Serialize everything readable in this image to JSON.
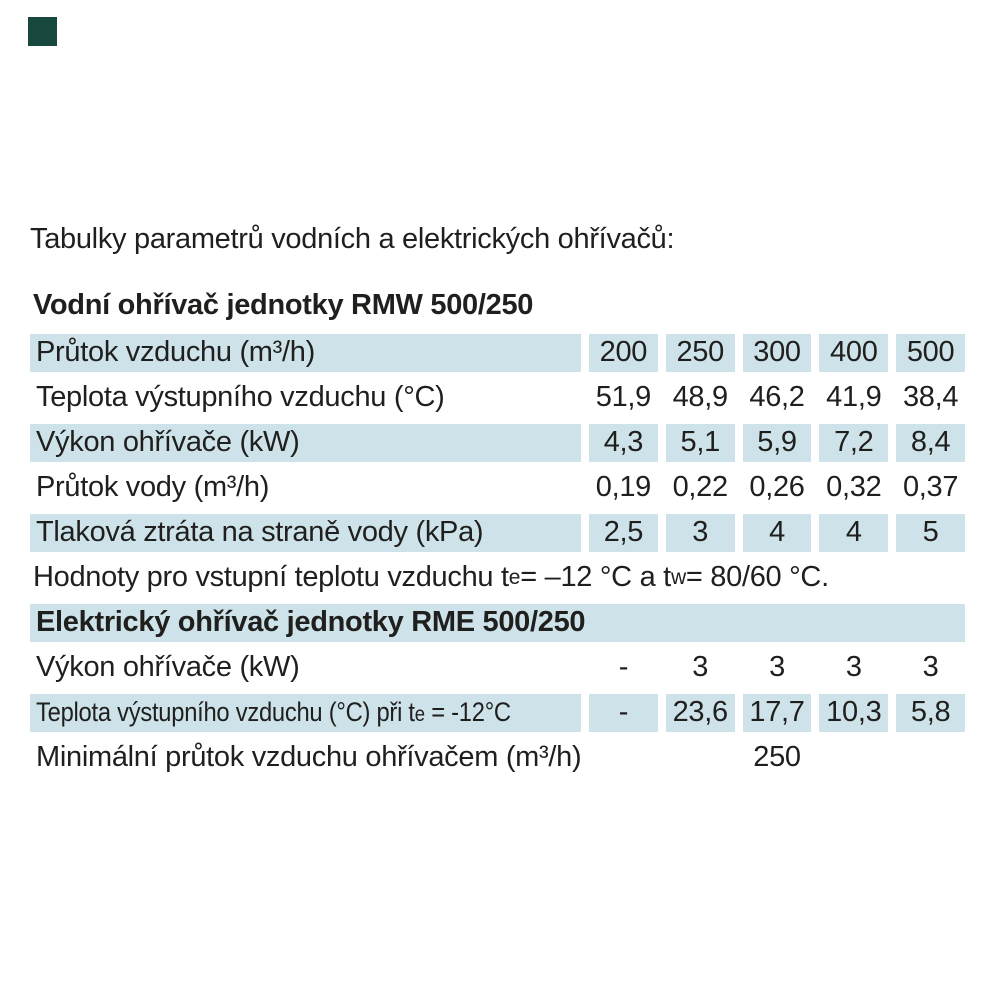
{
  "intro": "Tabulky parametrů vodních a elektrických ohřívačů:",
  "colors": {
    "row_shade": "#cee2e9",
    "corner_marker": "#16483e",
    "text": "#1f1f1e"
  },
  "water_table": {
    "title": "Vodní ohřívač jednotky RMW 500/250",
    "rows": [
      {
        "label": "Průtok vzduchu (m³/h)",
        "values": [
          "200",
          "250",
          "300",
          "400",
          "500"
        ]
      },
      {
        "label": "Teplota výstupního vzduchu (°C)",
        "values": [
          "51,9",
          "48,9",
          "46,2",
          "41,9",
          "38,4"
        ]
      },
      {
        "label": "Výkon ohřívače (kW)",
        "values": [
          "4,3",
          "5,1",
          "5,9",
          "7,2",
          "8,4"
        ]
      },
      {
        "label": "Průtok vody (m³/h)",
        "values": [
          "0,19",
          "0,22",
          "0,26",
          "0,32",
          "0,37"
        ]
      },
      {
        "label": "Tlaková ztráta na straně vody (kPa)",
        "values": [
          "2,5",
          "3",
          "4",
          "4",
          "5"
        ]
      }
    ]
  },
  "note": {
    "p1": "Hodnoty pro vstupní teplotu vzduchu t",
    "sub1": "e",
    "p2": " = –12 °C a t",
    "sub2": "w",
    "p3": " = 80/60 °C."
  },
  "electric_table": {
    "title": "Elektrický ohřívač jednotky RME 500/250",
    "rows": [
      {
        "label": "Výkon ohřívače (kW)",
        "values": [
          "-",
          "3",
          "3",
          "3",
          "3"
        ]
      },
      {
        "label_parts": {
          "p1": "Teplota výstupního vzduchu (°C) při t",
          "sub1": "e",
          "p2": " = -12°C"
        },
        "values": [
          "-",
          "23,6",
          "17,7",
          "10,3",
          "5,8"
        ]
      },
      {
        "label": "Minimální průtok vzduchu ohřívačem (m³/h)",
        "spanned_value": "250"
      }
    ]
  }
}
